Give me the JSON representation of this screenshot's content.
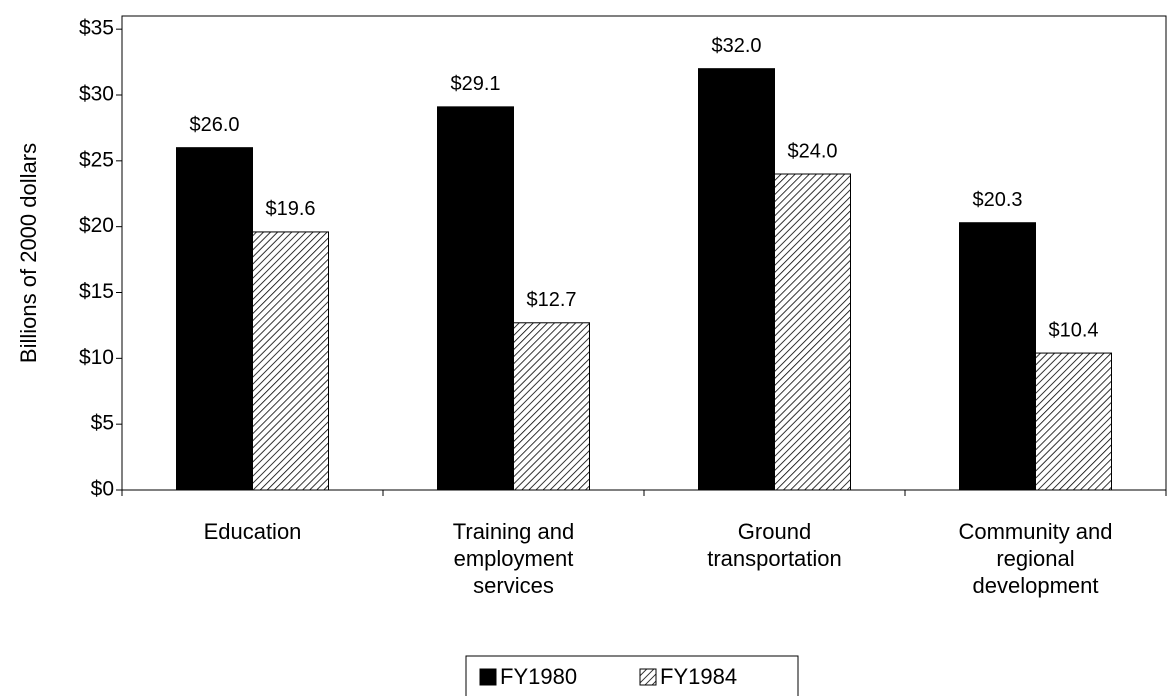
{
  "chart_data": {
    "type": "bar",
    "y_label": "Billions of 2000 dollars",
    "categories": [
      "Education",
      "Training and employment services",
      "Ground transportation",
      "Community and regional development"
    ],
    "series": [
      {
        "name": "FY1980",
        "color": "#000000",
        "pattern": "solid",
        "values": [
          26.0,
          29.1,
          32.0,
          20.3
        ],
        "value_labels": [
          "$26.0",
          "$29.1",
          "$32.0",
          "$20.3"
        ]
      },
      {
        "name": "FY1984",
        "color": "#000000",
        "pattern": "hatch",
        "values": [
          19.6,
          12.7,
          24.0,
          10.4
        ],
        "value_labels": [
          "$19.6",
          "$12.7",
          "$24.0",
          "$10.4"
        ]
      }
    ],
    "ylim": [
      0,
      36
    ],
    "yticks": [
      {
        "value": 0,
        "label": "$0"
      },
      {
        "value": 5,
        "label": "$5"
      },
      {
        "value": 10,
        "label": "$10"
      },
      {
        "value": 15,
        "label": "$15"
      },
      {
        "value": 20,
        "label": "$20"
      },
      {
        "value": 25,
        "label": "$25"
      },
      {
        "value": 30,
        "label": "$30"
      },
      {
        "value": 35,
        "label": "$35"
      }
    ],
    "legend": "bottom"
  }
}
